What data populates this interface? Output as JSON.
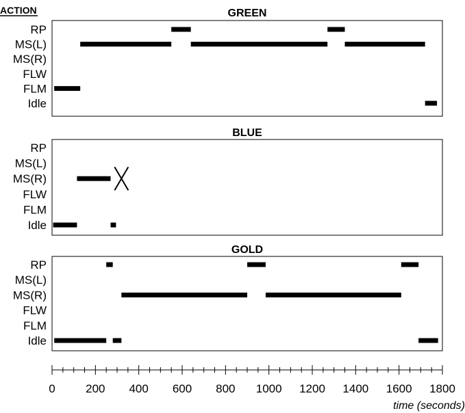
{
  "chart_data": {
    "type": "timeline",
    "header": "ACTION",
    "xlabel": "time (seconds)",
    "xlim": [
      0,
      1800
    ],
    "xticks": [
      0,
      200,
      400,
      600,
      800,
      1000,
      1200,
      1400,
      1600,
      1800
    ],
    "categories": [
      "RP",
      "MS(L)",
      "MS(R)",
      "FLW",
      "FLM",
      "Idle"
    ],
    "panels": [
      {
        "title": "GREEN",
        "segments": [
          {
            "action": "FLM",
            "start": 10,
            "end": 130
          },
          {
            "action": "MS(L)",
            "start": 130,
            "end": 550
          },
          {
            "action": "RP",
            "start": 550,
            "end": 640
          },
          {
            "action": "MS(L)",
            "start": 640,
            "end": 1270
          },
          {
            "action": "RP",
            "start": 1270,
            "end": 1350
          },
          {
            "action": "MS(L)",
            "start": 1350,
            "end": 1720
          },
          {
            "action": "Idle",
            "start": 1720,
            "end": 1775
          }
        ],
        "markers": []
      },
      {
        "title": "BLUE",
        "segments": [
          {
            "action": "Idle",
            "start": 5,
            "end": 115
          },
          {
            "action": "MS(R)",
            "start": 115,
            "end": 270
          },
          {
            "action": "Idle",
            "start": 270,
            "end": 295
          }
        ],
        "markers": [
          {
            "type": "X",
            "x": 320,
            "action": "MS(R)"
          }
        ]
      },
      {
        "title": "GOLD",
        "segments": [
          {
            "action": "Idle",
            "start": 10,
            "end": 250
          },
          {
            "action": "RP",
            "start": 250,
            "end": 280
          },
          {
            "action": "Idle",
            "start": 280,
            "end": 320
          },
          {
            "action": "MS(R)",
            "start": 320,
            "end": 900
          },
          {
            "action": "RP",
            "start": 900,
            "end": 985
          },
          {
            "action": "MS(R)",
            "start": 985,
            "end": 1610
          },
          {
            "action": "RP",
            "start": 1610,
            "end": 1690
          },
          {
            "action": "Idle",
            "start": 1690,
            "end": 1780
          }
        ],
        "markers": []
      }
    ]
  }
}
